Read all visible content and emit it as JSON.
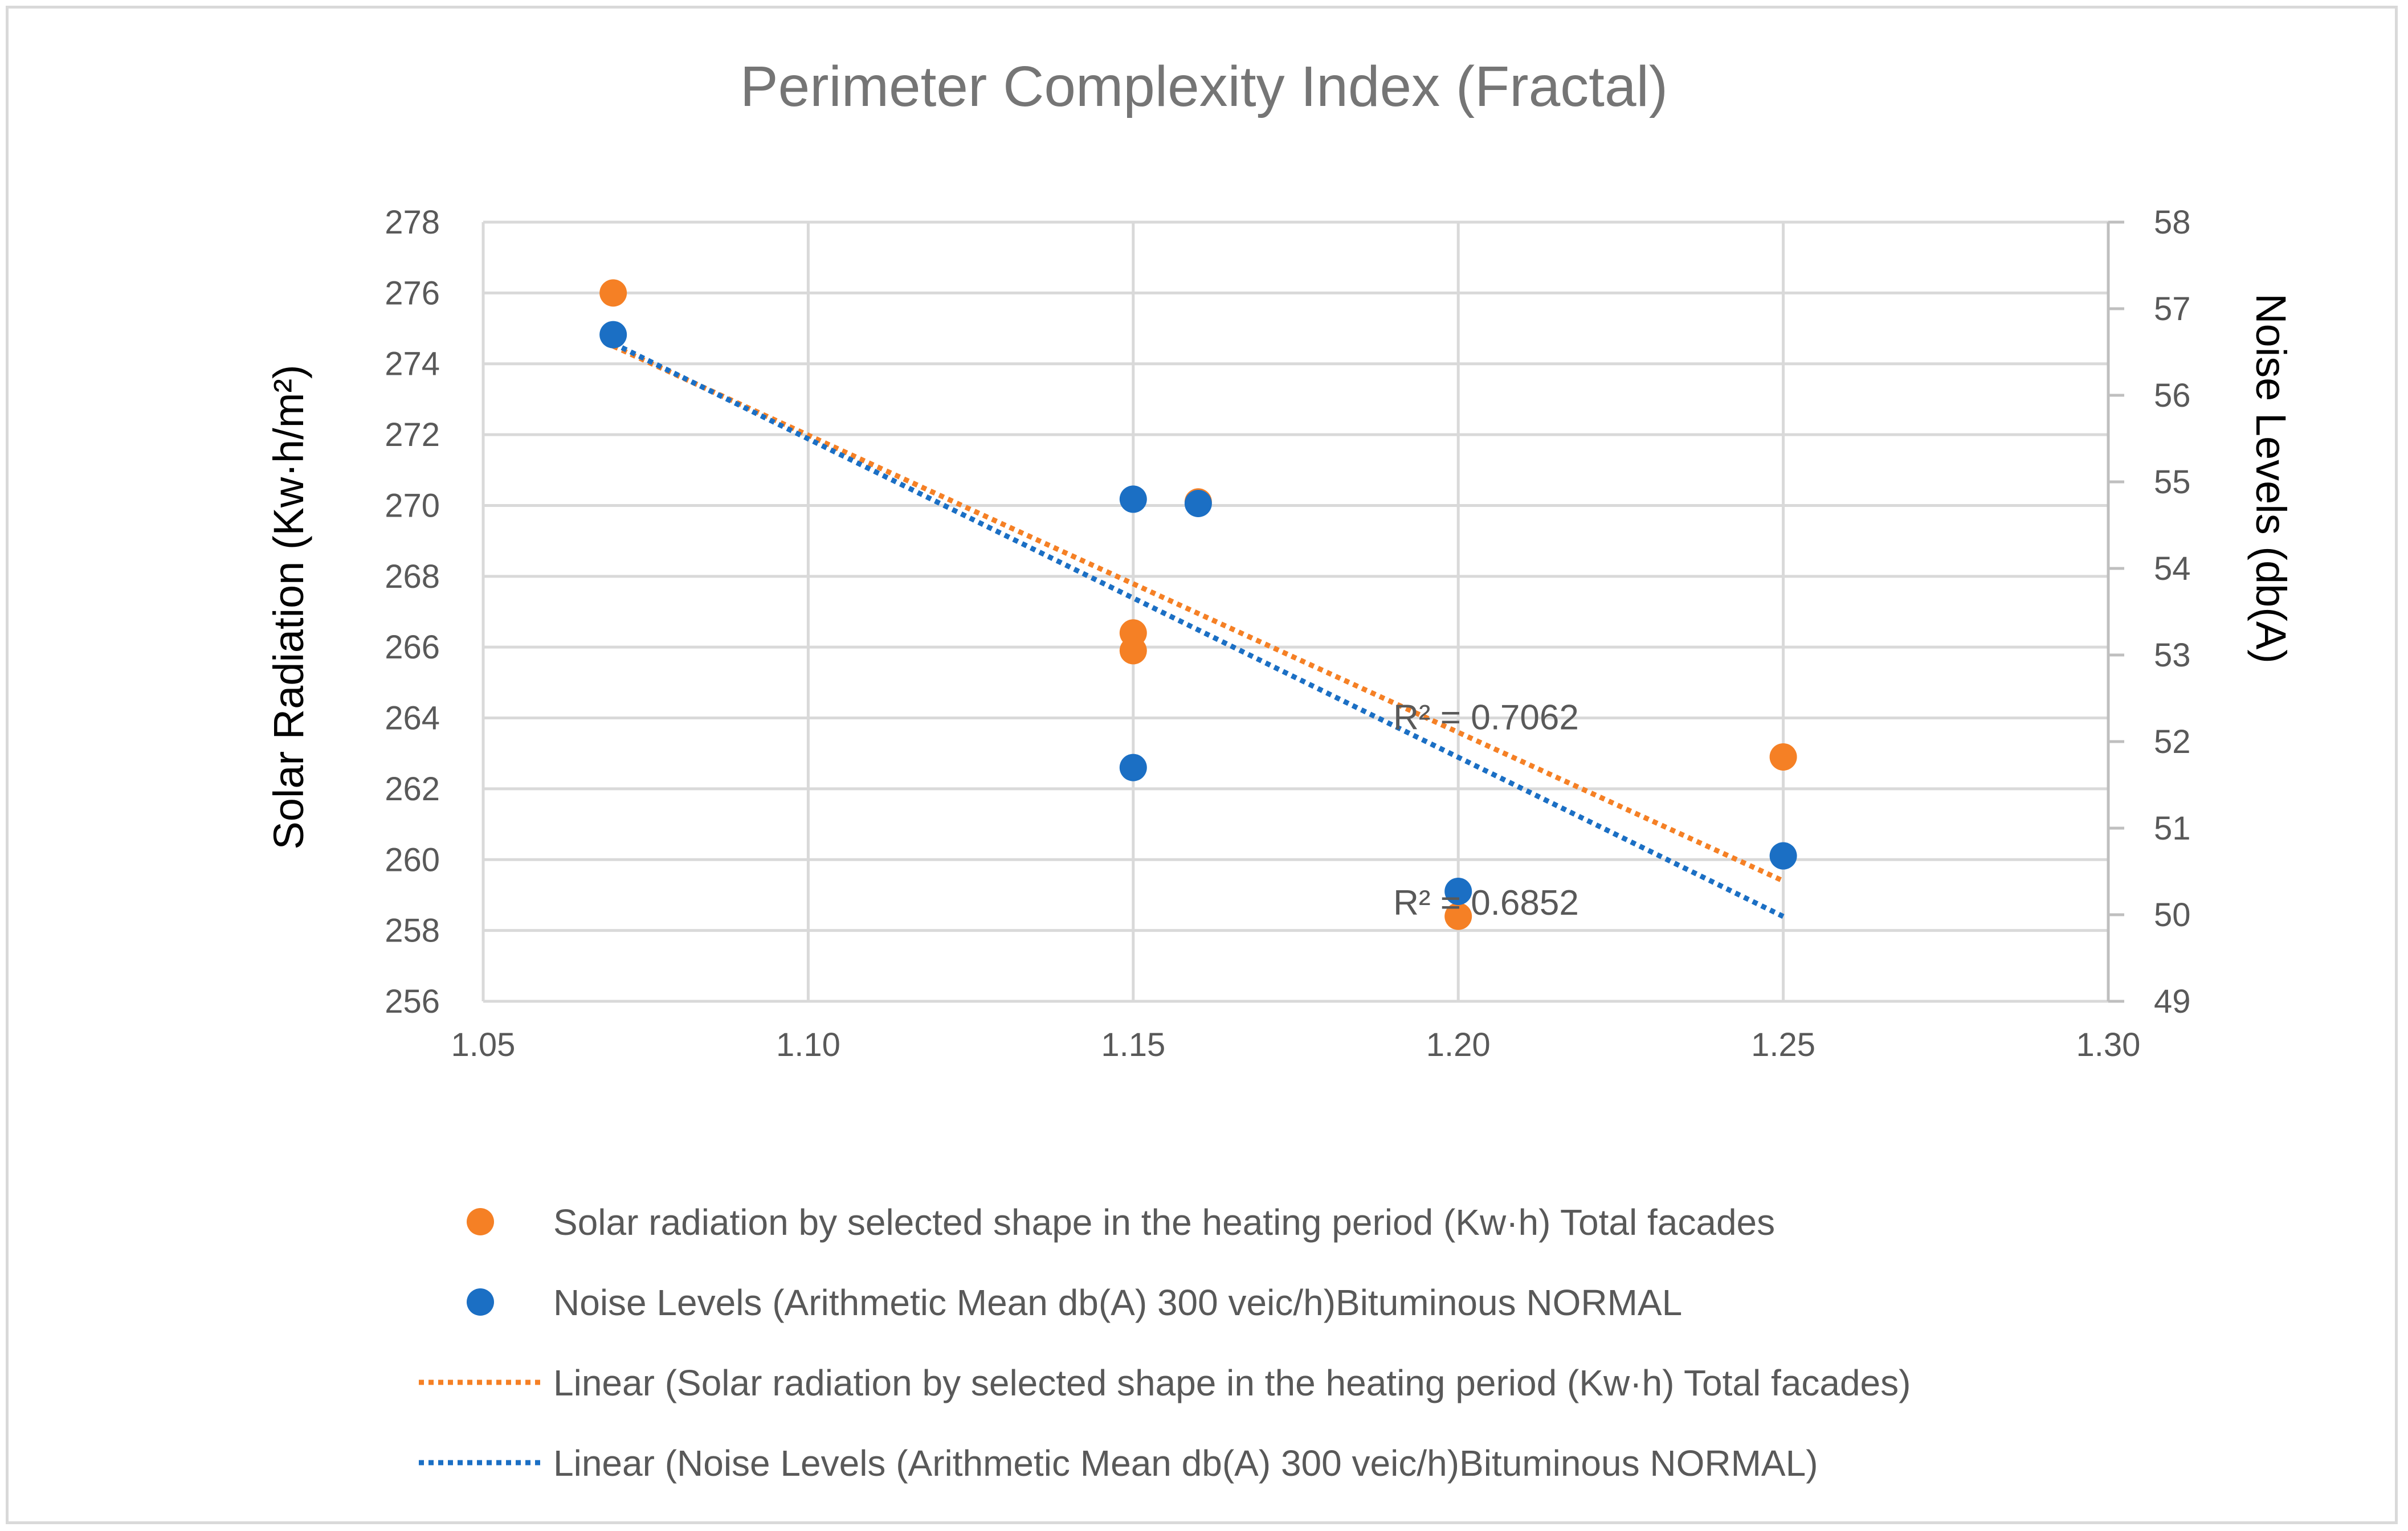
{
  "chart_data": {
    "type": "scatter",
    "title": "Perimeter Complexity Index (Fractal)",
    "xlabel": "",
    "ylabel_left": "Solar Radiation (Kw·h/m²)",
    "ylabel_right": "Noise Levels (db(A)",
    "xlim": [
      1.05,
      1.3
    ],
    "ylim_left": [
      256,
      278
    ],
    "ylim_right": [
      49,
      58
    ],
    "x_ticks": [
      "1.05",
      "1.10",
      "1.15",
      "1.20",
      "1.25",
      "1.30"
    ],
    "x_tick_values": [
      1.05,
      1.1,
      1.15,
      1.2,
      1.25,
      1.3
    ],
    "y_left_ticks": [
      "256",
      "258",
      "260",
      "262",
      "264",
      "266",
      "268",
      "270",
      "272",
      "274",
      "276",
      "278"
    ],
    "y_left_tick_values": [
      256,
      258,
      260,
      262,
      264,
      266,
      268,
      270,
      272,
      274,
      276,
      278
    ],
    "y_right_ticks": [
      "49",
      "50",
      "51",
      "52",
      "53",
      "54",
      "55",
      "56",
      "57",
      "58"
    ],
    "y_right_tick_values": [
      49,
      50,
      51,
      52,
      53,
      54,
      55,
      56,
      57,
      58
    ],
    "grid": true,
    "legend_position": "bottom",
    "series": [
      {
        "name": "Solar radiation by selected shape in the heating period (Kw·h) Total facades",
        "axis": "left",
        "color": "#f58025",
        "x": [
          1.07,
          1.15,
          1.15,
          1.16,
          1.2,
          1.25
        ],
        "y": [
          276.0,
          266.4,
          265.9,
          270.1,
          258.4,
          262.9
        ]
      },
      {
        "name": "Noise Levels (Arithmetic Mean db(A) 300 veic/h)Bituminous NORMAL",
        "axis": "right",
        "color": "#1b6fc4",
        "x": [
          1.07,
          1.15,
          1.15,
          1.16,
          1.2
        ],
        "y": [
          56.7,
          54.8,
          51.7,
          54.75,
          50.27
        ]
      }
    ],
    "extra_points": [
      {
        "series": 1,
        "x": 1.25,
        "y": 50.68
      }
    ],
    "trendlines": [
      {
        "name": "Linear (Solar radiation by selected shape in the heating period (Kw·h) Total facades)",
        "axis": "left",
        "color": "#f58025",
        "x": [
          1.07,
          1.25
        ],
        "y": [
          274.5,
          259.4
        ],
        "r2_label": "R² = 0.7062",
        "r2_at": [
          1.19,
          264.0
        ]
      },
      {
        "name": "Linear (Noise Levels (Arithmetic Mean db(A) 300 veic/h)Bituminous NORMAL)",
        "axis": "right",
        "color": "#1b6fc4",
        "x": [
          1.07,
          1.25
        ],
        "y": [
          56.6,
          49.98
        ],
        "r2_label": "R² = 0.6852",
        "r2_at": [
          1.19,
          50.13
        ]
      }
    ]
  }
}
